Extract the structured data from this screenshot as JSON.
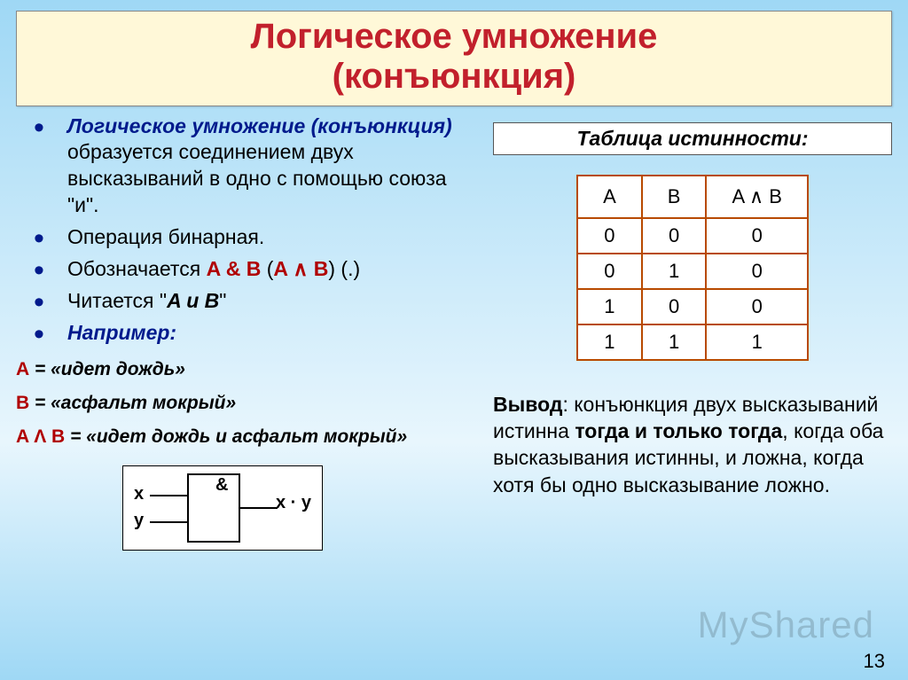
{
  "colors": {
    "slide_bg_top": "#9fd8f5",
    "slide_bg_bottom": "#e8f6fd",
    "title_bg": "#fff8d8",
    "title_color": "#c2202c",
    "bullet_color": "#001a8c",
    "body_color": "#000000",
    "notation_color": "#b00000",
    "table_border": "#b84a00",
    "table_bg": "#ffffff",
    "watermark_color": "rgba(0,0,0,0.16)"
  },
  "typography": {
    "title_fontsize": 40,
    "body_fontsize": 23,
    "table_fontsize": 22,
    "example_fontsize": 21,
    "conclusion_fontsize": 23
  },
  "title": {
    "line1": "Логическое умножение",
    "line2": "(конъюнкция)"
  },
  "bullets": [
    {
      "bold_prefix": "Логическое умножение (конъюнкция)",
      "rest": " образуется соединением двух высказываний в одно с помощью союза \"и\"."
    },
    {
      "text": "Операция бинарная."
    },
    {
      "pre": "Обозначается  ",
      "notation1": "A & B",
      "mid": "  (",
      "notation2": "A ∧ B",
      "post": ")  (.)"
    },
    {
      "pre": "Читается \"",
      "bold": "A и B",
      "post": "\""
    },
    {
      "bold_only": "Например:"
    }
  ],
  "examples": {
    "a_var": "A",
    "a_eq": " = «идет дождь»",
    "b_var": "B",
    "b_eq": " = «асфальт мокрый»",
    "ab_var": "A Λ B",
    "ab_eq": " = «идет дождь и асфальт мокрый»"
  },
  "gate": {
    "symbol": "&",
    "in1": "x",
    "in2": "y",
    "out": "x · y"
  },
  "truth_table": {
    "caption": "Таблица истинности:",
    "columns": [
      "A",
      "B",
      "A ∧ B"
    ],
    "rows": [
      [
        "0",
        "0",
        "0"
      ],
      [
        "0",
        "1",
        "0"
      ],
      [
        "1",
        "0",
        "0"
      ],
      [
        "1",
        "1",
        "1"
      ]
    ]
  },
  "conclusion": {
    "lead": "Вывод",
    "text1": ": конъюнкция двух высказываний истинна ",
    "bold1": "тогда и только тогда",
    "text2": ", когда оба высказывания истинны, и ложна, когда хотя бы одно высказывание ложно."
  },
  "watermark": "MyShared",
  "page_number": "13"
}
